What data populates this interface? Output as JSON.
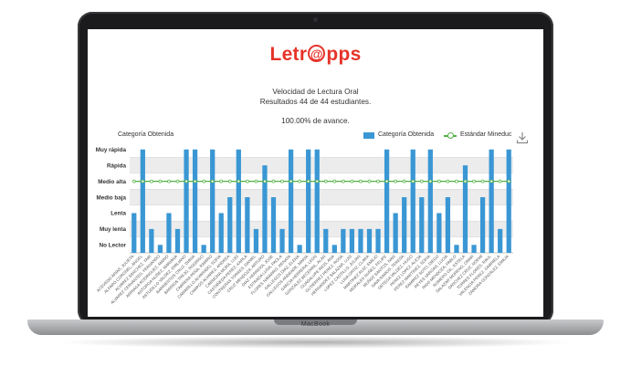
{
  "app": {
    "logo_text_pre": "Letr",
    "logo_text_at": "@",
    "logo_text_post": "pps",
    "brand_color": "#e63329"
  },
  "report": {
    "title": "Velocidad de Lectura Oral",
    "subtitle": "Resultados 44 de 44 estudiantes.",
    "progress_value": "100.00%",
    "progress_suffix": " de avance."
  },
  "chart_header": {
    "axis_caption": "Categoría Obtenida",
    "download_icon": "download-icon"
  },
  "laptop": {
    "label": "MacBook"
  },
  "chart_data": {
    "type": "bar",
    "ytick_labels": [
      "No Lector",
      "Muy lenta",
      "Lenta",
      "Medio baja",
      "Medio alta",
      "Rápida",
      "Muy rápida"
    ],
    "ylim": [
      0,
      6.6
    ],
    "grid": true,
    "legend_placement": "top-right",
    "bar_color": "#3a97d4",
    "line_color": "#52b044",
    "categories": [
      "ACEVEDO ARIAS, JULIETA",
      "ALFARO CORONEL, ANGEL",
      "ALVAREZ SANCHEZ, YAIR",
      "ALVAREZ CERVANTES, FERNANDO",
      "ARRIAGA RODRIGUEZ, MARIO",
      "ASTORGA NUÑEZ, MARIANA",
      "ASTUDILLO VALDEZ, EMILIANO",
      "BARRIENTOS CRUZ, DIANA",
      "BARRIOS TREJO, RODRIGO",
      "CABRERA PEÑA, RAMIRO",
      "CAMARILLO ALVARADO, SOFIA",
      "CAMPOS ALVAREZ, ANDREA",
      "CARMONA MORA, LUIS",
      "CASTAÑEDA PEREZ, KARLA",
      "CONTRERAS TORRES, DANIEL",
      "CRUZ MENDOZA, ARTURO",
      "DIAZ HERRERA, JOSE",
      "ESTRADA LUNA, PAOLA",
      "FLORES NAVARRO, RENATA",
      "GALLEGOS DIAZ, ELENA",
      "GALLEGOS ANDRADE, MARIA",
      "GARCIA HERRERA, LEON",
      "GONZALEZ BECERRIL, ALAN",
      "GUADALUPE RIOS, ANA",
      "GUTIERREZ PEREZ, ROSA",
      "HERNANDEZ SALAZAR, LUIS",
      "LOPEZ CASTILLO, JULIAN",
      "LUNA ORTIZ, CLARA",
      "MARTINEZ RUIZ, EMILIO",
      "MORALES NUÑEZ, FELIPE",
      "MUÑOZ SANTOS, IVAN",
      "NAVA RAMOS, TERESA",
      "ORTEGA VALDEZ, HUGO",
      "PEREZ LOPEZ, ALICIA",
      "PEREZ MARTINEZ, SOFIA",
      "RAMIREZ SOTO, DIEGO",
      "REYES VARGAS, LUCIA",
      "RIOS MENDOZA, PABLO",
      "ROMERO GIL, ESTELA",
      "SALAZAR MORENO, OMAR",
      "SANCHEZ CRUZ, NOEMI",
      "TORRES FLORES, RAUL",
      "VALENCIA PEREZ, GABRIELA",
      "ZAMORA GONZALEZ, EMILIA"
    ],
    "series": [
      {
        "name": "Categoría Obtenida",
        "values": [
          2.5,
          6.5,
          1.5,
          0.5,
          2.5,
          1.5,
          6.5,
          6.5,
          0.5,
          6.5,
          2.5,
          3.5,
          6.5,
          3.5,
          1.5,
          5.5,
          3.5,
          1.5,
          6.5,
          0.5,
          6.5,
          6.5,
          1.5,
          0.5,
          1.5,
          1.5,
          1.5,
          1.5,
          1.5,
          6.5,
          2.5,
          3.5,
          6.5,
          3.5,
          6.5,
          2.5,
          3.5,
          0.5,
          5.5,
          0.5,
          3.5,
          6.5,
          1.5,
          6.5
        ]
      },
      {
        "name": "Estándar Mineduc",
        "values": [
          4.5,
          4.5,
          4.5,
          4.5,
          4.5,
          4.5,
          4.5,
          4.5,
          4.5,
          4.5,
          4.5,
          4.5,
          4.5,
          4.5,
          4.5,
          4.5,
          4.5,
          4.5,
          4.5,
          4.5,
          4.5,
          4.5,
          4.5,
          4.5,
          4.5,
          4.5,
          4.5,
          4.5,
          4.5,
          4.5,
          4.5,
          4.5,
          4.5,
          4.5,
          4.5,
          4.5,
          4.5,
          4.5,
          4.5,
          4.5,
          4.5,
          4.5,
          4.5,
          4.5
        ]
      }
    ]
  }
}
